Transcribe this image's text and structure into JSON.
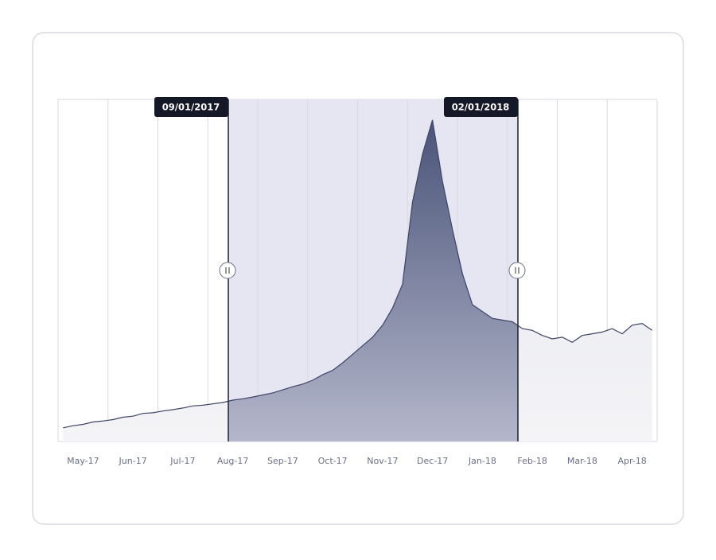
{
  "chart_data": {
    "type": "area",
    "categories": [
      null,
      null,
      "May-17",
      null,
      null,
      null,
      null,
      "Jun-17",
      null,
      null,
      null,
      null,
      "Jul-17",
      null,
      null,
      null,
      null,
      "Aug-17",
      null,
      null,
      null,
      null,
      "Sep-17",
      null,
      null,
      null,
      null,
      "Oct-17",
      null,
      null,
      null,
      null,
      "Nov-17",
      null,
      null,
      null,
      null,
      "Dec-17",
      null,
      null,
      null,
      null,
      "Jan-18",
      null,
      null,
      null,
      null,
      "Feb-18",
      null,
      null,
      null,
      null,
      "Mar-18",
      null,
      null,
      null,
      null,
      "Apr-18",
      null,
      null
    ],
    "series": [
      {
        "color": "#3d4466",
        "values": [
          4,
          4.6,
          5,
          5.7,
          6,
          6.4,
          7.1,
          7.4,
          8.2,
          8.4,
          8.9,
          9.3,
          9.8,
          10.4,
          10.6,
          11,
          11.4,
          12.1,
          12.5,
          13,
          13.6,
          14.2,
          15.1,
          16,
          16.8,
          17.9,
          19.5,
          20.8,
          23,
          25.5,
          28,
          30.5,
          34,
          39,
          46,
          70,
          84,
          94,
          76,
          62,
          49,
          40,
          38,
          36,
          35.5,
          35,
          33,
          32.5,
          31,
          30,
          30.5,
          29,
          31,
          31.5,
          32,
          33,
          31.5,
          34,
          34.5,
          32.5
        ]
      }
    ],
    "ylim": [
      0,
      100
    ],
    "selection": {
      "start_label": "09/01/2017",
      "end_label": "02/01/2018"
    }
  }
}
